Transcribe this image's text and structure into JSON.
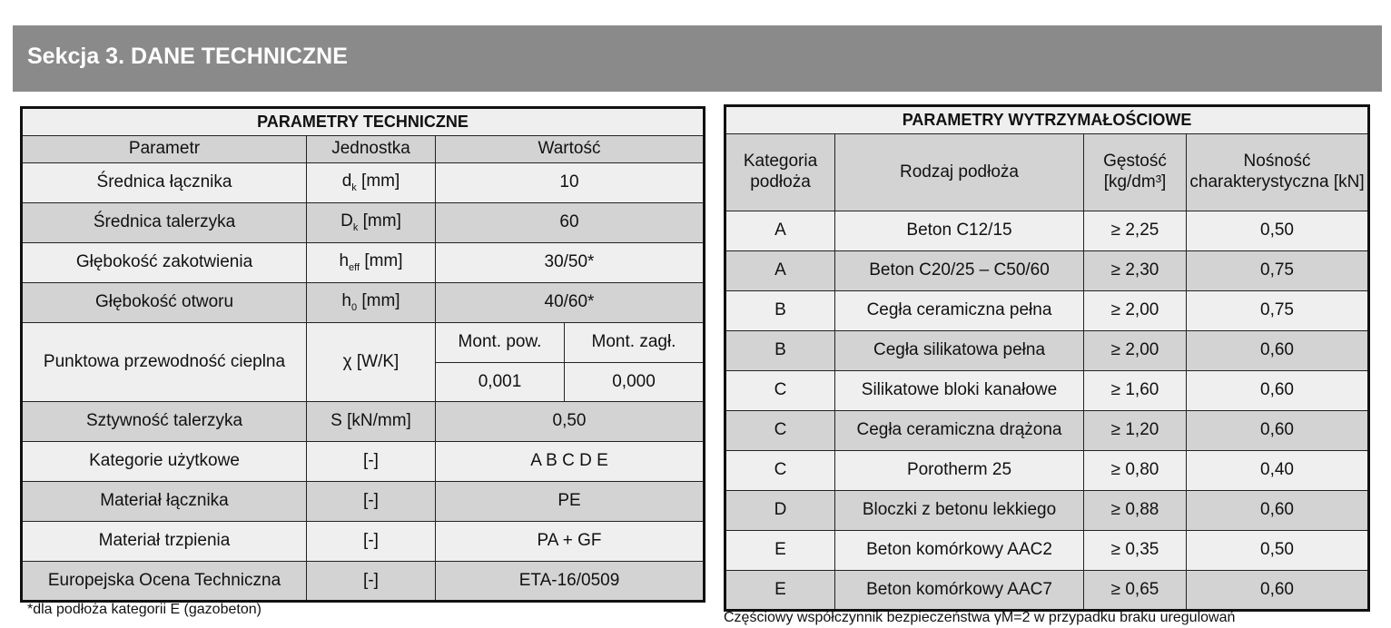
{
  "section_title": "Sekcja 3. DANE TECHNICZNE",
  "tech": {
    "title": "PARAMETRY TECHNICZNE",
    "headers": [
      "Parametr",
      "Jednostka",
      "Wartość"
    ],
    "rows": [
      {
        "param": "Średnica łącznika",
        "unit_base": "d",
        "unit_sub": "k",
        "unit_rest": " [mm]",
        "value": "10"
      },
      {
        "param": "Średnica talerzyka",
        "unit_base": "D",
        "unit_sub": "k",
        "unit_rest": " [mm]",
        "value": "60"
      },
      {
        "param": "Głębokość zakotwienia",
        "unit_base": "h",
        "unit_sub": "eff",
        "unit_rest": " [mm]",
        "value": "30/50*"
      },
      {
        "param": "Głębokość otworu",
        "unit_base": "h",
        "unit_sub": "0",
        "unit_rest": " [mm]",
        "value": "40/60*"
      }
    ],
    "thermal": {
      "param": "Punktowa przewodność cieplna",
      "unit": "χ [W/K]",
      "sub_headers": [
        "Mont. pow.",
        "Mont. zagł."
      ],
      "values": [
        "0,001",
        "0,000"
      ]
    },
    "rows2": [
      {
        "param": "Sztywność talerzyka",
        "unit": "S [kN/mm]",
        "value": "0,50"
      },
      {
        "param": "Kategorie użytkowe",
        "unit": "[-]",
        "value": "A B C D E"
      },
      {
        "param": "Materiał łącznika",
        "unit": "[-]",
        "value": "PE"
      },
      {
        "param": "Materiał trzpienia",
        "unit": "[-]",
        "value": "PA + GF"
      },
      {
        "param": "Europejska Ocena Techniczna",
        "unit": "[-]",
        "value": "ETA-16/0509"
      }
    ],
    "footnote": "*dla podłoża kategorii E (gazobeton)"
  },
  "strength": {
    "title": "PARAMETRY WYTRZYMAŁOŚCIOWE",
    "headers": [
      "Kategoria podłoża",
      "Rodzaj podłoża",
      "Gęstość [kg/dm³]",
      "Nośność charakterystyczna [kN]"
    ],
    "rows": [
      [
        "A",
        "Beton C12/15",
        "≥ 2,25",
        "0,50"
      ],
      [
        "A",
        "Beton C20/25 – C50/60",
        "≥ 2,30",
        "0,75"
      ],
      [
        "B",
        "Cegła ceramiczna pełna",
        "≥ 2,00",
        "0,75"
      ],
      [
        "B",
        "Cegła silikatowa pełna",
        "≥ 2,00",
        "0,60"
      ],
      [
        "C",
        "Silikatowe bloki kanałowe",
        "≥ 1,60",
        "0,60"
      ],
      [
        "C",
        "Cegła ceramiczna drążona",
        "≥ 1,20",
        "0,60"
      ],
      [
        "C",
        "Porotherm 25",
        "≥ 0,80",
        "0,40"
      ],
      [
        "D",
        "Bloczki z betonu lekkiego",
        "≥ 0,88",
        "0,60"
      ],
      [
        "E",
        "Beton komórkowy AAC2",
        "≥ 0,35",
        "0,50"
      ],
      [
        "E",
        "Beton komórkowy AAC7",
        "≥ 0,65",
        "0,60"
      ]
    ],
    "footnote": "Częściowy współczynnik bezpieczeństwa γM=2 w przypadku braku uregulowań"
  }
}
